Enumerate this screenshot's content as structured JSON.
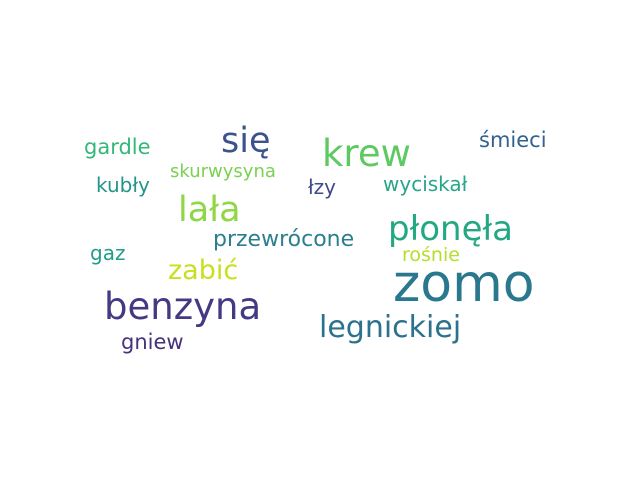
{
  "words": {
    "zomo": {
      "text": "zomo",
      "color": "#2a788e"
    },
    "benzyna": {
      "text": "benzyna",
      "color": "#443a83"
    },
    "plonela": {
      "text": "płonęła",
      "color": "#23a883"
    },
    "legnickiej": {
      "text": "legnickiej",
      "color": "#2c728e"
    },
    "krew": {
      "text": "krew",
      "color": "#5ec962"
    },
    "sie": {
      "text": "się",
      "color": "#3b528b"
    },
    "lala": {
      "text": "lała",
      "color": "#8fd744"
    },
    "zabic": {
      "text": "zabić",
      "color": "#c8e020"
    },
    "przewrocone": {
      "text": "przewrócone",
      "color": "#2c7f8e"
    },
    "wyciskal": {
      "text": "wyciskał",
      "color": "#29a587"
    },
    "smieci": {
      "text": "śmieci",
      "color": "#33628d"
    },
    "gardle": {
      "text": "gardle",
      "color": "#35b779"
    },
    "kubly": {
      "text": "kubły",
      "color": "#25948b"
    },
    "skurwysyna": {
      "text": "skurwysyna",
      "color": "#7ad151"
    },
    "lzy": {
      "text": "łzy",
      "color": "#3e4a89"
    },
    "gaz": {
      "text": "gaz",
      "color": "#1f9e89"
    },
    "rosnie": {
      "text": "rośnie",
      "color": "#b5de2b"
    },
    "gniew": {
      "text": "gniew",
      "color": "#46327e"
    }
  }
}
